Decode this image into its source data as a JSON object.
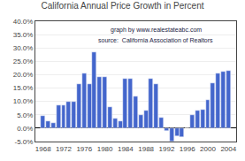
{
  "chart_data": {
    "type": "bar",
    "title": "California Annual Price Growth in Percent",
    "annotations": [
      "graph by www.realestateabc.com",
      "source:  California Association of Realtors"
    ],
    "x": [
      1968,
      1969,
      1970,
      1971,
      1972,
      1973,
      1974,
      1975,
      1976,
      1977,
      1978,
      1979,
      1980,
      1981,
      1982,
      1983,
      1984,
      1985,
      1986,
      1987,
      1988,
      1989,
      1990,
      1991,
      1992,
      1993,
      1994,
      1995,
      1996,
      1997,
      1998,
      1999,
      2000,
      2001,
      2002,
      2003,
      2004
    ],
    "values": [
      4.5,
      2.5,
      2.0,
      8.5,
      8.5,
      10.0,
      10.0,
      16.5,
      20.5,
      16.5,
      28.5,
      19.0,
      19.0,
      8.0,
      3.5,
      2.5,
      18.5,
      18.5,
      12.0,
      5.0,
      6.5,
      18.5,
      16.5,
      4.0,
      -1.0,
      -5.0,
      -3.0,
      -3.5,
      0.0,
      5.0,
      6.5,
      7.0,
      10.5,
      17.0,
      20.5,
      21.0,
      21.5
    ],
    "color": "#4466cc",
    "xlim": [
      1966.5,
      2005.5
    ],
    "xticks": [
      1968,
      1972,
      1976,
      1980,
      1984,
      1988,
      1992,
      1996,
      2000,
      2004
    ],
    "ylim": [
      -5,
      40
    ],
    "yticks": [
      {
        "value": -5.0,
        "label": "-5.0%"
      },
      {
        "value": 0.0,
        "label": "0.0%"
      },
      {
        "value": 5.0,
        "label": "5.0%"
      },
      {
        "value": 10.0,
        "label": "10.0%"
      },
      {
        "value": 15.0,
        "label": "15.0%"
      },
      {
        "value": 20.0,
        "label": "20.0%"
      },
      {
        "value": 25.0,
        "label": "25.0%"
      },
      {
        "value": 30.0,
        "label": "30.0%"
      },
      {
        "value": 35.0,
        "label": "35.0%"
      },
      {
        "value": 40.0,
        "label": "40.0%"
      }
    ],
    "grid": true
  }
}
